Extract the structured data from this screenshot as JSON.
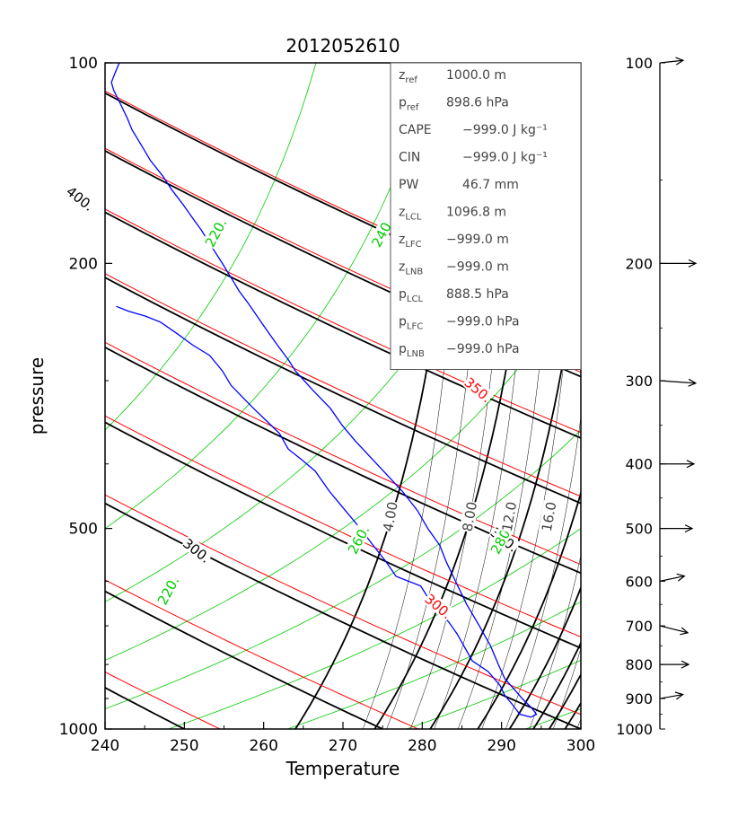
{
  "chart_data": {
    "type": "line",
    "title": "2012052610",
    "xlabel": "Temperature",
    "ylabel": "pressure",
    "xlim": [
      240,
      300
    ],
    "ylim": [
      1000,
      100
    ],
    "yscale": "log",
    "x_ticks": [
      "240",
      "250",
      "260",
      "270",
      "280",
      "290",
      "300"
    ],
    "y_ticks": [
      "100",
      "200",
      "500",
      "1000"
    ],
    "colors": {
      "axes": "#000000",
      "theta": "#000000",
      "theta_e": "#ff0000",
      "moist_adiabat": "#00cc00",
      "mixing_ratio": "#000000",
      "sounding": "#0000ff"
    },
    "theta_lines": [
      250,
      275,
      300,
      325,
      350,
      375,
      400,
      425,
      450
    ],
    "theta_labels": [
      {
        "text": "300.",
        "theta": 300,
        "p": 540
      },
      {
        "text": "350.",
        "theta": 350,
        "p": 185
      },
      {
        "text": "350.",
        "theta": 350,
        "p": 520
      },
      {
        "text": "400.",
        "theta": 400,
        "p": 160
      },
      {
        "text": "400.",
        "theta": 400,
        "p": 500
      }
    ],
    "theta_e_lines": [
      250,
      275,
      300,
      325,
      350,
      375,
      400,
      425,
      450
    ],
    "theta_e_labels": [
      {
        "text": "300.",
        "x": 282,
        "p": 655
      },
      {
        "text": "350.",
        "x": 287,
        "p": 310
      },
      {
        "text": "400.",
        "x": 288,
        "p": 152
      }
    ],
    "moist_lines_x1000": [
      173,
      188,
      203,
      218,
      233,
      248,
      263,
      278,
      293
    ],
    "moist_labels": [
      {
        "text": "220.",
        "x": 248,
        "p": 620
      },
      {
        "text": "220.",
        "x": 254,
        "p": 180
      },
      {
        "text": "240.",
        "x": 275,
        "p": 180
      },
      {
        "text": "260.",
        "x": 272,
        "p": 520
      },
      {
        "text": "280.",
        "x": 290,
        "p": 520
      }
    ],
    "mixing_ratio_base": [
      272.5,
      275.5,
      278.5,
      281.5,
      284.5,
      287.5,
      290.5,
      293.5,
      296.5,
      299.5
    ],
    "mixing_ratio_labels": [
      {
        "text": "4.00",
        "x": 276,
        "p": 480
      },
      {
        "text": "8.00",
        "x": 286,
        "p": 480
      },
      {
        "text": "12.0",
        "x": 291,
        "p": 480
      },
      {
        "text": "16.0",
        "x": 296,
        "p": 480
      }
    ],
    "thick_isotherm_base": [
      264,
      274,
      281,
      287,
      291,
      294,
      296,
      298,
      300,
      302
    ],
    "series": [
      {
        "style": "profile",
        "points": [
          [
            293.7,
            960
          ],
          [
            294.4,
            950
          ],
          [
            293.8,
            930
          ],
          [
            292.6,
            900
          ],
          [
            291.9,
            880
          ],
          [
            290.4,
            840
          ],
          [
            289.6,
            800
          ],
          [
            288.6,
            750
          ],
          [
            287.2,
            700
          ],
          [
            285.6,
            650
          ],
          [
            284.2,
            600
          ],
          [
            283.0,
            560
          ],
          [
            282.2,
            530
          ],
          [
            280.7,
            500
          ],
          [
            279.4,
            470
          ],
          [
            277.5,
            440
          ],
          [
            275.1,
            410
          ],
          [
            271.6,
            370
          ],
          [
            269.9,
            350
          ],
          [
            268.4,
            330
          ],
          [
            266.2,
            310
          ],
          [
            264.0,
            290
          ],
          [
            263.2,
            280
          ],
          [
            261.7,
            265
          ],
          [
            260.2,
            250
          ],
          [
            258.1,
            230
          ],
          [
            256.9,
            220
          ],
          [
            256.2,
            213
          ],
          [
            254.8,
            200
          ],
          [
            253.6,
            190
          ],
          [
            252.1,
            178
          ],
          [
            251.2,
            172
          ],
          [
            249.8,
            163
          ],
          [
            248.4,
            155
          ],
          [
            247.3,
            148
          ],
          [
            245.7,
            140
          ],
          [
            244.6,
            133
          ],
          [
            243.4,
            126
          ],
          [
            242.8,
            121
          ],
          [
            241.9,
            115
          ],
          [
            241.1,
            110
          ],
          [
            240.8,
            107
          ],
          [
            241.2,
            104
          ],
          [
            241.8,
            100
          ]
        ]
      },
      {
        "style": "dewpoint",
        "points": [
          [
            293.7,
            960
          ],
          [
            292.3,
            950
          ],
          [
            291.4,
            920
          ],
          [
            290.4,
            890
          ],
          [
            289.8,
            860
          ],
          [
            288.3,
            820
          ],
          [
            286.3,
            790
          ],
          [
            284.4,
            720
          ],
          [
            283.3,
            690
          ],
          [
            281.6,
            660
          ],
          [
            279.8,
            610
          ],
          [
            276.7,
            590
          ],
          [
            275.4,
            560
          ],
          [
            273.8,
            530
          ],
          [
            272.2,
            500
          ],
          [
            270.3,
            470
          ],
          [
            268.3,
            440
          ],
          [
            266.5,
            410
          ],
          [
            264.9,
            395
          ],
          [
            263.1,
            380
          ],
          [
            262.0,
            360
          ],
          [
            260.4,
            345
          ],
          [
            258.7,
            330
          ],
          [
            257.6,
            320
          ],
          [
            255.9,
            305
          ],
          [
            254.8,
            290
          ],
          [
            253.2,
            275
          ],
          [
            251.0,
            265
          ],
          [
            249.1,
            255
          ],
          [
            247.0,
            245
          ],
          [
            245.1,
            240
          ],
          [
            243.0,
            236
          ],
          [
            241.4,
            232
          ]
        ]
      }
    ],
    "info_box": [
      {
        "name": "z",
        "sub": "ref",
        "value": "1000.0 m"
      },
      {
        "name": "p",
        "sub": "ref",
        "value": "898.6 hPa"
      },
      {
        "name": "CAPE",
        "sub": "",
        "value": "−999.0 J kg⁻¹"
      },
      {
        "name": "CIN",
        "sub": "",
        "value": "−999.0 J kg⁻¹"
      },
      {
        "name": "PW",
        "sub": "",
        "value": "46.7 mm"
      },
      {
        "name": "z",
        "sub": "LCL",
        "value": "1096.8 m"
      },
      {
        "name": "z",
        "sub": "LFC",
        "value": "−999.0 m"
      },
      {
        "name": "z",
        "sub": "LNB",
        "value": "−999.0 m"
      },
      {
        "name": "p",
        "sub": "LCL",
        "value": "888.5 hPa"
      },
      {
        "name": "p",
        "sub": "LFC",
        "value": "−999.0 hPa"
      },
      {
        "name": "p",
        "sub": "LNB",
        "value": "−999.0 hPa"
      }
    ],
    "wind_profile": {
      "ticks": [
        "100",
        "200",
        "300",
        "400",
        "500",
        "600",
        "700",
        "800",
        "900",
        "1000"
      ],
      "levels": [
        {
          "p": 100,
          "len": 26,
          "angle": -6
        },
        {
          "p": 200,
          "len": 40,
          "angle": 0
        },
        {
          "p": 300,
          "len": 40,
          "angle": 4
        },
        {
          "p": 400,
          "len": 38,
          "angle": 0
        },
        {
          "p": 500,
          "len": 36,
          "angle": 0
        },
        {
          "p": 600,
          "len": 28,
          "angle": -12
        },
        {
          "p": 700,
          "len": 32,
          "angle": 14
        },
        {
          "p": 800,
          "len": 32,
          "angle": 0
        },
        {
          "p": 900,
          "len": 26,
          "angle": -10
        }
      ]
    }
  }
}
